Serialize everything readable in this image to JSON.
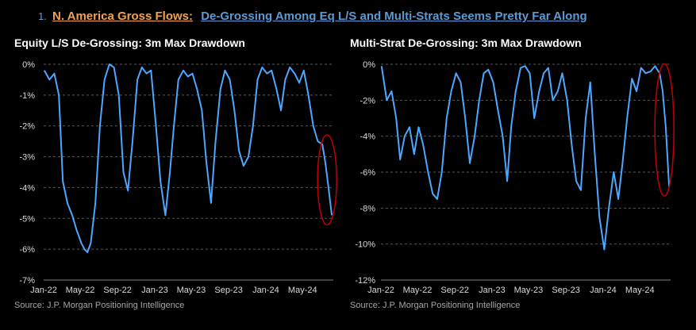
{
  "headline": {
    "number": "1.",
    "lead": "N. America Gross Flows:",
    "rest": "De-Grossing Among Eq L/S and Multi-Strats Seems Pretty Far Along"
  },
  "colors": {
    "background": "#000000",
    "line": "#4da6ff",
    "circle": "#c00000",
    "grid": "#595959",
    "headline_lead": "#f4a24f",
    "headline_rest": "#5b9bd5"
  },
  "panels": [
    {
      "title": "Equity L/S De-Grossing: 3m Max Drawdown",
      "source": "Source: J.P. Morgan Positioning Intelligence"
    },
    {
      "title": "Multi-Strat De-Grossing: 3m Max Drawdown",
      "source": "Source: J.P. Morgan Positioning Intelligence"
    }
  ],
  "chart_data": [
    {
      "type": "line",
      "title": "Equity L/S De-Grossing: 3m Max Drawdown",
      "xlabel": "",
      "ylabel": "",
      "x_ticks": [
        "Jan-22",
        "May-22",
        "Sep-22",
        "Jan-23",
        "May-23",
        "Sep-23",
        "Jan-24",
        "May-24"
      ],
      "y_ticks": [
        "0%",
        "-1%",
        "-2%",
        "-3%",
        "-4%",
        "-5%",
        "-6%",
        "-7%"
      ],
      "ylim": [
        -7,
        0
      ],
      "xlim": [
        "2022-01-01",
        "2024-08-10"
      ],
      "grid": "horizontal dashed",
      "annotation": "red ellipse around the most recent values",
      "series": [
        {
          "x": [
            "2022-01-03",
            "2022-01-20",
            "2022-02-05",
            "2022-02-20",
            "2022-03-05",
            "2022-03-20",
            "2022-04-05",
            "2022-04-20",
            "2022-05-05",
            "2022-05-15",
            "2022-05-25",
            "2022-06-05",
            "2022-06-20",
            "2022-07-05",
            "2022-07-20",
            "2022-08-05",
            "2022-08-20",
            "2022-09-05",
            "2022-09-20",
            "2022-10-05",
            "2022-10-20",
            "2022-11-05",
            "2022-11-20",
            "2022-12-05",
            "2022-12-20",
            "2023-01-05",
            "2023-01-20",
            "2023-02-05",
            "2023-02-20",
            "2023-03-05",
            "2023-03-20",
            "2023-04-05",
            "2023-04-20",
            "2023-05-05",
            "2023-05-20",
            "2023-06-05",
            "2023-06-20",
            "2023-07-05",
            "2023-07-20",
            "2023-08-05",
            "2023-08-20",
            "2023-09-05",
            "2023-09-20",
            "2023-10-05",
            "2023-10-20",
            "2023-11-05",
            "2023-11-20",
            "2023-12-05",
            "2023-12-20",
            "2024-01-05",
            "2024-01-20",
            "2024-02-05",
            "2024-02-20",
            "2024-03-05",
            "2024-03-20",
            "2024-04-05",
            "2024-04-20",
            "2024-05-05",
            "2024-05-20",
            "2024-06-05",
            "2024-06-20",
            "2024-07-05",
            "2024-07-15",
            "2024-07-25",
            "2024-08-05"
          ],
          "y": [
            -0.2,
            -0.5,
            -0.3,
            -1.0,
            -3.8,
            -4.5,
            -4.9,
            -5.4,
            -5.8,
            -6.0,
            -6.1,
            -5.8,
            -4.5,
            -2.0,
            -0.5,
            0.0,
            -0.1,
            -1.0,
            -3.5,
            -4.1,
            -2.5,
            -0.5,
            -0.1,
            -0.3,
            -0.2,
            -2.0,
            -3.8,
            -4.9,
            -3.5,
            -2.0,
            -0.5,
            -0.2,
            -0.4,
            -0.3,
            -0.8,
            -1.5,
            -3.2,
            -4.5,
            -2.5,
            -0.8,
            -0.2,
            -0.5,
            -1.5,
            -2.8,
            -3.3,
            -3.0,
            -2.0,
            -0.5,
            -0.1,
            -0.3,
            -0.2,
            -0.8,
            -1.5,
            -0.5,
            -0.1,
            -0.3,
            -0.6,
            -0.2,
            -1.0,
            -2.0,
            -2.5,
            -2.6,
            -3.2,
            -4.0,
            -4.9
          ]
        }
      ]
    },
    {
      "type": "line",
      "title": "Multi-Strat De-Grossing: 3m Max Drawdown",
      "xlabel": "",
      "ylabel": "",
      "x_ticks": [
        "Jan-22",
        "May-22",
        "Sep-22",
        "Jan-23",
        "May-23",
        "Sep-23",
        "Jan-24",
        "May-24"
      ],
      "y_ticks": [
        "0%",
        "-2%",
        "-4%",
        "-6%",
        "-8%",
        "-10%",
        "-12%"
      ],
      "ylim": [
        -12,
        0
      ],
      "xlim": [
        "2022-01-01",
        "2024-08-10"
      ],
      "grid": "horizontal dashed",
      "annotation": "red ellipse around the most recent values",
      "series": [
        {
          "x": [
            "2022-01-03",
            "2022-01-20",
            "2022-02-05",
            "2022-02-20",
            "2022-03-05",
            "2022-03-20",
            "2022-04-05",
            "2022-04-20",
            "2022-05-05",
            "2022-05-20",
            "2022-06-05",
            "2022-06-20",
            "2022-07-05",
            "2022-07-20",
            "2022-08-05",
            "2022-08-20",
            "2022-09-05",
            "2022-09-20",
            "2022-10-05",
            "2022-10-20",
            "2022-11-05",
            "2022-11-20",
            "2022-12-05",
            "2022-12-20",
            "2023-01-05",
            "2023-01-20",
            "2023-02-05",
            "2023-02-20",
            "2023-03-05",
            "2023-03-20",
            "2023-04-05",
            "2023-04-20",
            "2023-05-05",
            "2023-05-20",
            "2023-06-05",
            "2023-06-20",
            "2023-07-05",
            "2023-07-20",
            "2023-08-05",
            "2023-08-20",
            "2023-09-05",
            "2023-09-20",
            "2023-10-05",
            "2023-10-20",
            "2023-11-05",
            "2023-11-20",
            "2023-12-05",
            "2023-12-20",
            "2024-01-05",
            "2024-01-20",
            "2024-02-05",
            "2024-02-20",
            "2024-03-05",
            "2024-03-20",
            "2024-04-05",
            "2024-04-20",
            "2024-05-05",
            "2024-05-20",
            "2024-06-05",
            "2024-06-20",
            "2024-07-05",
            "2024-07-15",
            "2024-07-25",
            "2024-08-05"
          ],
          "y": [
            -0.1,
            -2.0,
            -1.5,
            -3.0,
            -5.3,
            -4.0,
            -3.5,
            -5.0,
            -3.5,
            -4.5,
            -6.0,
            -7.2,
            -7.5,
            -6.0,
            -3.0,
            -1.5,
            -0.5,
            -1.0,
            -3.0,
            -5.5,
            -4.0,
            -2.0,
            -0.5,
            -0.3,
            -1.0,
            -2.5,
            -4.0,
            -6.5,
            -3.5,
            -1.5,
            -0.2,
            -0.1,
            -0.5,
            -3.0,
            -1.5,
            -0.5,
            -0.2,
            -2.0,
            -1.5,
            -0.5,
            -2.0,
            -4.5,
            -6.5,
            -7.0,
            -3.0,
            -1.0,
            -5.0,
            -8.5,
            -10.3,
            -8.0,
            -6.0,
            -7.5,
            -5.5,
            -3.0,
            -0.8,
            -1.5,
            -0.2,
            -0.5,
            -0.4,
            -0.1,
            -0.5,
            -1.5,
            -3.5,
            -6.8
          ]
        }
      ]
    }
  ]
}
